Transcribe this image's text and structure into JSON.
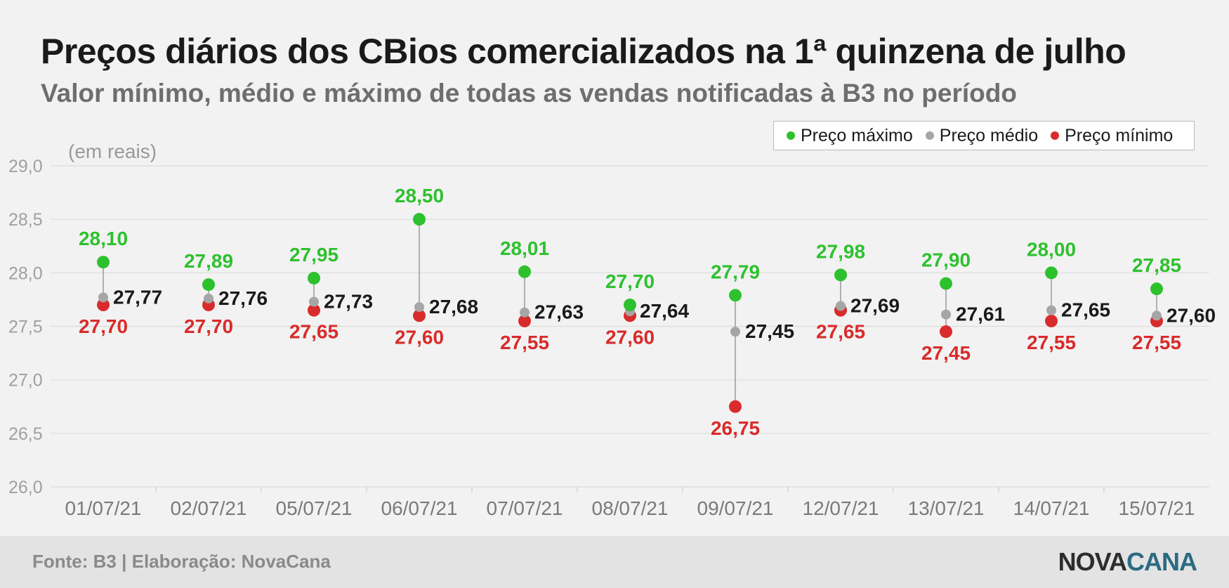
{
  "header": {
    "title": "Preços diários dos CBios comercializados na 1ª quinzena de julho",
    "subtitle": "Valor mínimo, médio e máximo de todas as vendas notificadas à B3 no período",
    "unit": "(em reais)"
  },
  "legend": {
    "max_label": "Preço máximo",
    "avg_label": "Preço médio",
    "min_label": "Preço mínimo"
  },
  "colors": {
    "max": "#2ec12e",
    "avg": "#a6a6a6",
    "min": "#d92b2b",
    "avg_text": "#1a1a1a",
    "grid": "#dcdcdc",
    "axis_text": "#a0a0a0",
    "category_text": "#7a7a7a"
  },
  "footer": {
    "source": "Fonte: B3 | Elaboração: NovaCana",
    "logo_part1": "NOVA",
    "logo_part2": "CANA"
  },
  "chart_data": {
    "type": "scatter",
    "categories": [
      "01/07/21",
      "02/07/21",
      "05/07/21",
      "06/07/21",
      "07/07/21",
      "08/07/21",
      "09/07/21",
      "12/07/21",
      "13/07/21",
      "14/07/21",
      "15/07/21"
    ],
    "series": [
      {
        "name": "Preço máximo",
        "values": [
          28.1,
          27.89,
          27.95,
          28.5,
          28.01,
          27.7,
          27.79,
          27.98,
          27.9,
          28.0,
          27.85
        ],
        "labels": [
          "28,10",
          "27,89",
          "27,95",
          "28,50",
          "28,01",
          "27,70",
          "27,79",
          "27,98",
          "27,90",
          "28,00",
          "27,85"
        ]
      },
      {
        "name": "Preço médio",
        "values": [
          27.77,
          27.76,
          27.73,
          27.68,
          27.63,
          27.64,
          27.45,
          27.69,
          27.61,
          27.65,
          27.6
        ],
        "labels": [
          "27,77",
          "27,76",
          "27,73",
          "27,68",
          "27,63",
          "27,64",
          "27,45",
          "27,69",
          "27,61",
          "27,65",
          "27,60"
        ]
      },
      {
        "name": "Preço mínimo",
        "values": [
          27.7,
          27.7,
          27.65,
          27.6,
          27.55,
          27.6,
          26.75,
          27.65,
          27.45,
          27.55,
          27.55
        ],
        "labels": [
          "27,70",
          "27,70",
          "27,65",
          "27,60",
          "27,55",
          "27,60",
          "26,75",
          "27,65",
          "27,45",
          "27,55",
          "27,55"
        ]
      }
    ],
    "ylim": [
      26.0,
      29.0
    ],
    "yticks": [
      "26,0",
      "26,5",
      "27,0",
      "27,5",
      "28,0",
      "28,5",
      "29,0"
    ],
    "ytick_values": [
      26.0,
      26.5,
      27.0,
      27.5,
      28.0,
      28.5,
      29.0
    ],
    "grid": true,
    "legend_position": "top-right"
  }
}
